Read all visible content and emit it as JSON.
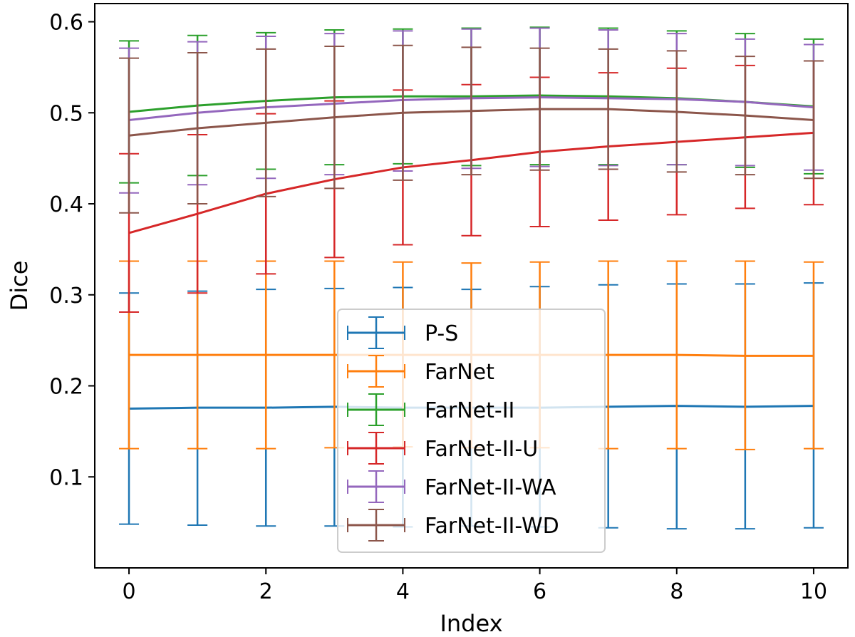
{
  "chart_data": {
    "type": "line",
    "error_bars": true,
    "title": "",
    "xlabel": "Index",
    "ylabel": "Dice",
    "xlim": [
      -0.5,
      10.5
    ],
    "ylim": [
      0.0,
      0.62
    ],
    "xticks": [
      0,
      2,
      4,
      6,
      8,
      10
    ],
    "xtick_labels": [
      "0",
      "2",
      "4",
      "6",
      "8",
      "10"
    ],
    "yticks": [
      0.1,
      0.2,
      0.3,
      0.4,
      0.5,
      0.6
    ],
    "ytick_labels": [
      "0.1",
      "0.2",
      "0.3",
      "0.4",
      "0.5",
      "0.6"
    ],
    "grid": false,
    "legend_position": "lower-center",
    "x": [
      0,
      1,
      2,
      3,
      4,
      5,
      6,
      7,
      8,
      9,
      10
    ],
    "series": [
      {
        "name": "P-S",
        "color": "#1f77b4",
        "values": [
          0.175,
          0.176,
          0.176,
          0.177,
          0.176,
          0.176,
          0.176,
          0.177,
          0.178,
          0.177,
          0.178
        ],
        "lower": [
          0.048,
          0.047,
          0.046,
          0.046,
          0.045,
          0.046,
          0.045,
          0.044,
          0.043,
          0.043,
          0.044
        ],
        "upper": [
          0.302,
          0.304,
          0.306,
          0.307,
          0.308,
          0.306,
          0.309,
          0.311,
          0.312,
          0.312,
          0.313
        ]
      },
      {
        "name": "FarNet",
        "color": "#ff7f0e",
        "values": [
          0.234,
          0.234,
          0.234,
          0.234,
          0.234,
          0.234,
          0.234,
          0.234,
          0.234,
          0.233,
          0.233
        ],
        "lower": [
          0.131,
          0.131,
          0.131,
          0.132,
          0.133,
          0.132,
          0.132,
          0.131,
          0.131,
          0.13,
          0.131
        ],
        "upper": [
          0.337,
          0.337,
          0.337,
          0.337,
          0.336,
          0.335,
          0.336,
          0.337,
          0.337,
          0.337,
          0.336
        ]
      },
      {
        "name": "FarNet-II",
        "color": "#2ca02c",
        "values": [
          0.501,
          0.508,
          0.513,
          0.517,
          0.518,
          0.518,
          0.519,
          0.518,
          0.516,
          0.512,
          0.507
        ],
        "lower": [
          0.423,
          0.431,
          0.438,
          0.443,
          0.444,
          0.442,
          0.443,
          0.443,
          0.443,
          0.44,
          0.433
        ],
        "upper": [
          0.579,
          0.585,
          0.588,
          0.591,
          0.592,
          0.593,
          0.594,
          0.593,
          0.59,
          0.587,
          0.581
        ]
      },
      {
        "name": "FarNet-II-U",
        "color": "#d62728",
        "values": [
          0.368,
          0.389,
          0.411,
          0.427,
          0.44,
          0.448,
          0.457,
          0.463,
          0.468,
          0.473,
          0.478
        ],
        "lower": [
          0.281,
          0.302,
          0.323,
          0.341,
          0.355,
          0.365,
          0.375,
          0.382,
          0.388,
          0.395,
          0.399
        ],
        "upper": [
          0.455,
          0.476,
          0.499,
          0.513,
          0.525,
          0.531,
          0.539,
          0.544,
          0.549,
          0.552,
          0.557
        ]
      },
      {
        "name": "FarNet-II-WA",
        "color": "#9467bd",
        "values": [
          0.492,
          0.5,
          0.506,
          0.51,
          0.514,
          0.516,
          0.517,
          0.516,
          0.515,
          0.512,
          0.506
        ],
        "lower": [
          0.412,
          0.421,
          0.428,
          0.432,
          0.436,
          0.439,
          0.441,
          0.442,
          0.443,
          0.442,
          0.437
        ],
        "upper": [
          0.571,
          0.578,
          0.584,
          0.587,
          0.59,
          0.592,
          0.593,
          0.591,
          0.587,
          0.581,
          0.575
        ]
      },
      {
        "name": "FarNet-II-WD",
        "color": "#8c564b",
        "values": [
          0.475,
          0.483,
          0.489,
          0.495,
          0.5,
          0.502,
          0.504,
          0.504,
          0.501,
          0.497,
          0.492
        ],
        "lower": [
          0.39,
          0.4,
          0.408,
          0.417,
          0.426,
          0.432,
          0.437,
          0.438,
          0.435,
          0.432,
          0.428
        ],
        "upper": [
          0.56,
          0.566,
          0.57,
          0.573,
          0.574,
          0.572,
          0.571,
          0.57,
          0.568,
          0.562,
          0.557
        ]
      }
    ]
  }
}
